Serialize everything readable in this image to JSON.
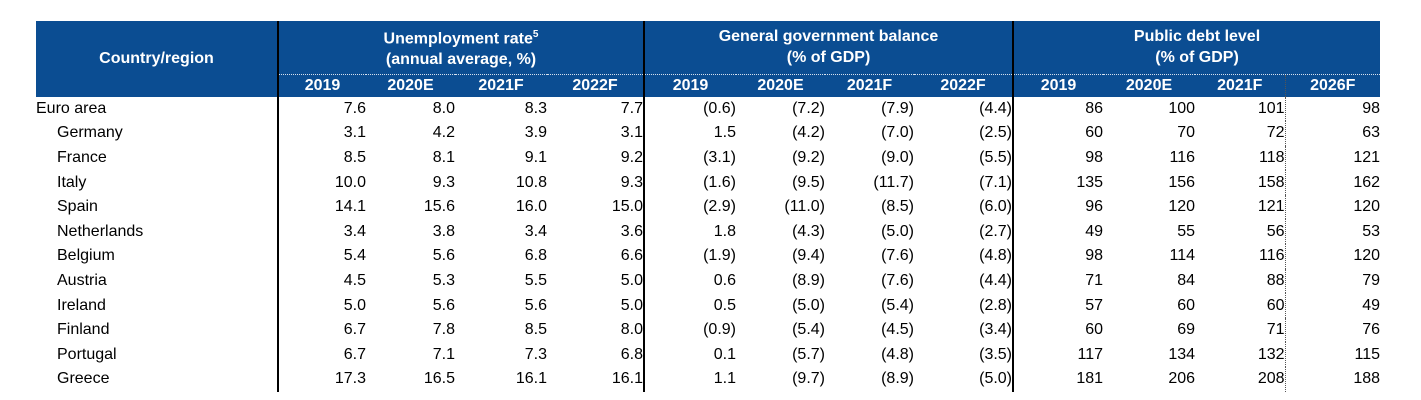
{
  "header": {
    "country_col": "Country/region",
    "groups": [
      {
        "title": "Unemployment rate",
        "sup": "5",
        "subtitle": "(annual average, %)"
      },
      {
        "title": "General government balance",
        "sup": "",
        "subtitle": "(% of GDP)"
      },
      {
        "title": "Public debt level",
        "sup": "",
        "subtitle": "(% of GDP)"
      }
    ],
    "years": [
      "2019",
      "2020E",
      "2021F",
      "2022F",
      "2019",
      "2020E",
      "2021F",
      "2022F",
      "2019",
      "2020E",
      "2021F",
      "2026F"
    ]
  },
  "colors": {
    "header_bg": "#0b4d92",
    "header_text": "#ffffff"
  },
  "rows": [
    {
      "name": "Euro area",
      "values": [
        "7.6",
        "8.0",
        "8.3",
        "7.7",
        "(0.6)",
        "(7.2)",
        "(7.9)",
        "(4.4)",
        "86",
        "100",
        "101",
        "98"
      ]
    },
    {
      "name": "Germany",
      "values": [
        "3.1",
        "4.2",
        "3.9",
        "3.1",
        "1.5",
        "(4.2)",
        "(7.0)",
        "(2.5)",
        "60",
        "70",
        "72",
        "63"
      ]
    },
    {
      "name": "France",
      "values": [
        "8.5",
        "8.1",
        "9.1",
        "9.2",
        "(3.1)",
        "(9.2)",
        "(9.0)",
        "(5.5)",
        "98",
        "116",
        "118",
        "121"
      ]
    },
    {
      "name": "Italy",
      "values": [
        "10.0",
        "9.3",
        "10.8",
        "9.3",
        "(1.6)",
        "(9.5)",
        "(11.7)",
        "(7.1)",
        "135",
        "156",
        "158",
        "162"
      ]
    },
    {
      "name": "Spain",
      "values": [
        "14.1",
        "15.6",
        "16.0",
        "15.0",
        "(2.9)",
        "(11.0)",
        "(8.5)",
        "(6.0)",
        "96",
        "120",
        "121",
        "120"
      ]
    },
    {
      "name": "Netherlands",
      "values": [
        "3.4",
        "3.8",
        "3.4",
        "3.6",
        "1.8",
        "(4.3)",
        "(5.0)",
        "(2.7)",
        "49",
        "55",
        "56",
        "53"
      ]
    },
    {
      "name": "Belgium",
      "values": [
        "5.4",
        "5.6",
        "6.8",
        "6.6",
        "(1.9)",
        "(9.4)",
        "(7.6)",
        "(4.8)",
        "98",
        "114",
        "116",
        "120"
      ]
    },
    {
      "name": "Austria",
      "values": [
        "4.5",
        "5.3",
        "5.5",
        "5.0",
        "0.6",
        "(8.9)",
        "(7.6)",
        "(4.4)",
        "71",
        "84",
        "88",
        "79"
      ]
    },
    {
      "name": "Ireland",
      "values": [
        "5.0",
        "5.6",
        "5.6",
        "5.0",
        "0.5",
        "(5.0)",
        "(5.4)",
        "(2.8)",
        "57",
        "60",
        "60",
        "49"
      ]
    },
    {
      "name": "Finland",
      "values": [
        "6.7",
        "7.8",
        "8.5",
        "8.0",
        "(0.9)",
        "(5.4)",
        "(4.5)",
        "(3.4)",
        "60",
        "69",
        "71",
        "76"
      ]
    },
    {
      "name": "Portugal",
      "values": [
        "6.7",
        "7.1",
        "7.3",
        "6.8",
        "0.1",
        "(5.7)",
        "(4.8)",
        "(3.5)",
        "117",
        "134",
        "132",
        "115"
      ]
    },
    {
      "name": "Greece",
      "values": [
        "17.3",
        "16.5",
        "16.1",
        "16.1",
        "1.1",
        "(9.7)",
        "(8.9)",
        "(5.0)",
        "181",
        "206",
        "208",
        "188"
      ]
    }
  ]
}
